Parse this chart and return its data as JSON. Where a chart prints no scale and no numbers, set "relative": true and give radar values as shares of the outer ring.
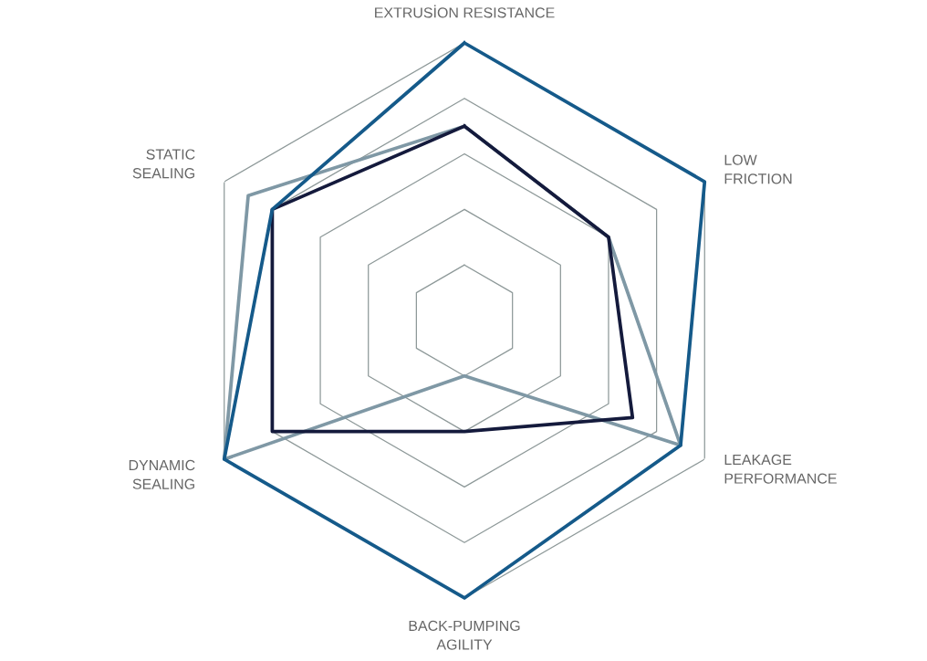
{
  "chart_data": {
    "type": "radar",
    "relative": true,
    "categories": [
      "EXTRUSİON RESISTANCE",
      "LOW\nFRICTION",
      "LEAKAGE\nPERFORMANCE",
      "BACK-PUMPING\nAGILITY",
      "DYNAMIC\nSEALING",
      "STATIC\nSEALING"
    ],
    "grid": true,
    "line_style": "solid",
    "series": [
      {
        "color": "#7f98a5",
        "values": [
          0.7,
          0.6,
          0.9,
          0.2,
          1.0,
          0.9
        ]
      },
      {
        "color": "#141a3c",
        "values": [
          0.7,
          0.6,
          0.7,
          0.4,
          0.8,
          0.8
        ]
      },
      {
        "color": "#155a8a",
        "values": [
          1.0,
          1.0,
          0.9,
          1.0,
          1.0,
          0.8
        ]
      }
    ]
  }
}
